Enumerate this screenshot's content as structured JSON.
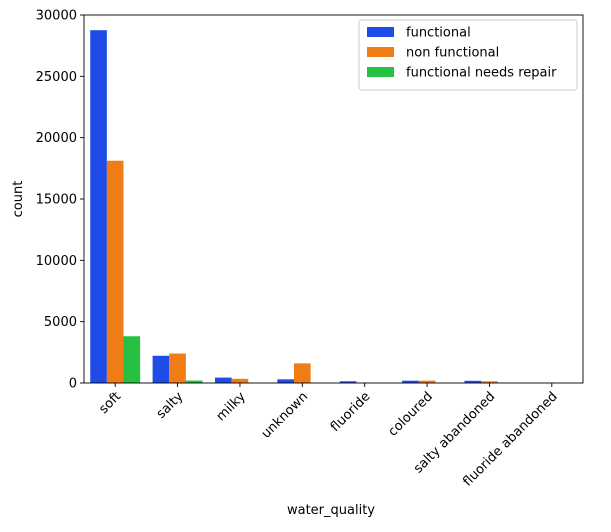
{
  "chart_data": {
    "type": "bar",
    "title": "",
    "xlabel": "water_quality",
    "ylabel": "count",
    "ylim": [
      0,
      30000
    ],
    "yticks": [
      0,
      5000,
      10000,
      15000,
      20000,
      25000,
      30000
    ],
    "categories": [
      "soft",
      "salty",
      "milky",
      "unknown",
      "fluoride",
      "coloured",
      "salty abandoned",
      "fluoride abandoned"
    ],
    "legend_position": "top-right",
    "series": [
      {
        "name": "functional",
        "color": "#1f4be6",
        "values": [
          28760,
          2220,
          440,
          300,
          140,
          190,
          180,
          0
        ]
      },
      {
        "name": "non functional",
        "color": "#f07c15",
        "values": [
          18120,
          2400,
          340,
          1600,
          30,
          190,
          140,
          20
        ]
      },
      {
        "name": "functional needs repair",
        "color": "#26c043",
        "values": [
          3810,
          200,
          30,
          30,
          10,
          30,
          20,
          0
        ]
      }
    ]
  }
}
